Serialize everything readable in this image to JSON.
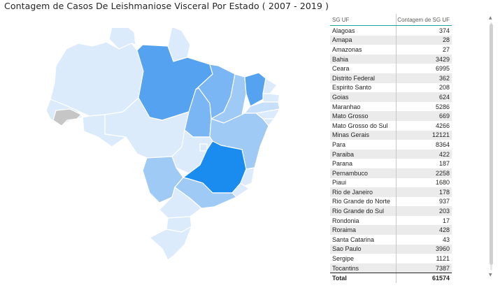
{
  "title": "Contagem de Casos De Leishmaniose Visceral Por Estado ( 2007 - 2019 )",
  "table": {
    "headers": [
      "SG UF",
      "Contagem de SG UF"
    ],
    "rows": [
      {
        "uf": "Alagoas",
        "count": "374"
      },
      {
        "uf": "Amapa",
        "count": "28"
      },
      {
        "uf": "Amazonas",
        "count": "27"
      },
      {
        "uf": "Bahia",
        "count": "3429"
      },
      {
        "uf": "Ceara",
        "count": "6995"
      },
      {
        "uf": "Distrito Federal",
        "count": "362"
      },
      {
        "uf": "Espirito Santo",
        "count": "208"
      },
      {
        "uf": "Goias",
        "count": "624"
      },
      {
        "uf": "Maranhao",
        "count": "5286"
      },
      {
        "uf": "Mato Grosso",
        "count": "669"
      },
      {
        "uf": "Mato Grosso do Sul",
        "count": "4266"
      },
      {
        "uf": "Minas Gerais",
        "count": "12121"
      },
      {
        "uf": "Para",
        "count": "8364"
      },
      {
        "uf": "Paraiba",
        "count": "422"
      },
      {
        "uf": "Parana",
        "count": "187"
      },
      {
        "uf": "Pernambuco",
        "count": "2258"
      },
      {
        "uf": "Piaui",
        "count": "1680"
      },
      {
        "uf": "Rio de Janeiro",
        "count": "178"
      },
      {
        "uf": "Rio Grande do Norte",
        "count": "937"
      },
      {
        "uf": "Rio Grande do Sul",
        "count": "203"
      },
      {
        "uf": "Rondonia",
        "count": "17"
      },
      {
        "uf": "Roraima",
        "count": "428"
      },
      {
        "uf": "Santa Catarina",
        "count": "43"
      },
      {
        "uf": "Sao Paulo",
        "count": "3960"
      },
      {
        "uf": "Sergipe",
        "count": "1121"
      },
      {
        "uf": "Tocantins",
        "count": "7387"
      }
    ],
    "total_label": "Total",
    "total_value": "61574"
  },
  "map_colors": {
    "very_light": "#dcebfb",
    "light": "#c6dffa",
    "medium_light": "#9fcaf6",
    "medium": "#7ab6f3",
    "strong": "#55a3f0",
    "max": "#1a8cf0",
    "no_data": "#c6c6c6"
  },
  "icons": {
    "scroll_up": "▲",
    "scroll_down": "▼"
  }
}
